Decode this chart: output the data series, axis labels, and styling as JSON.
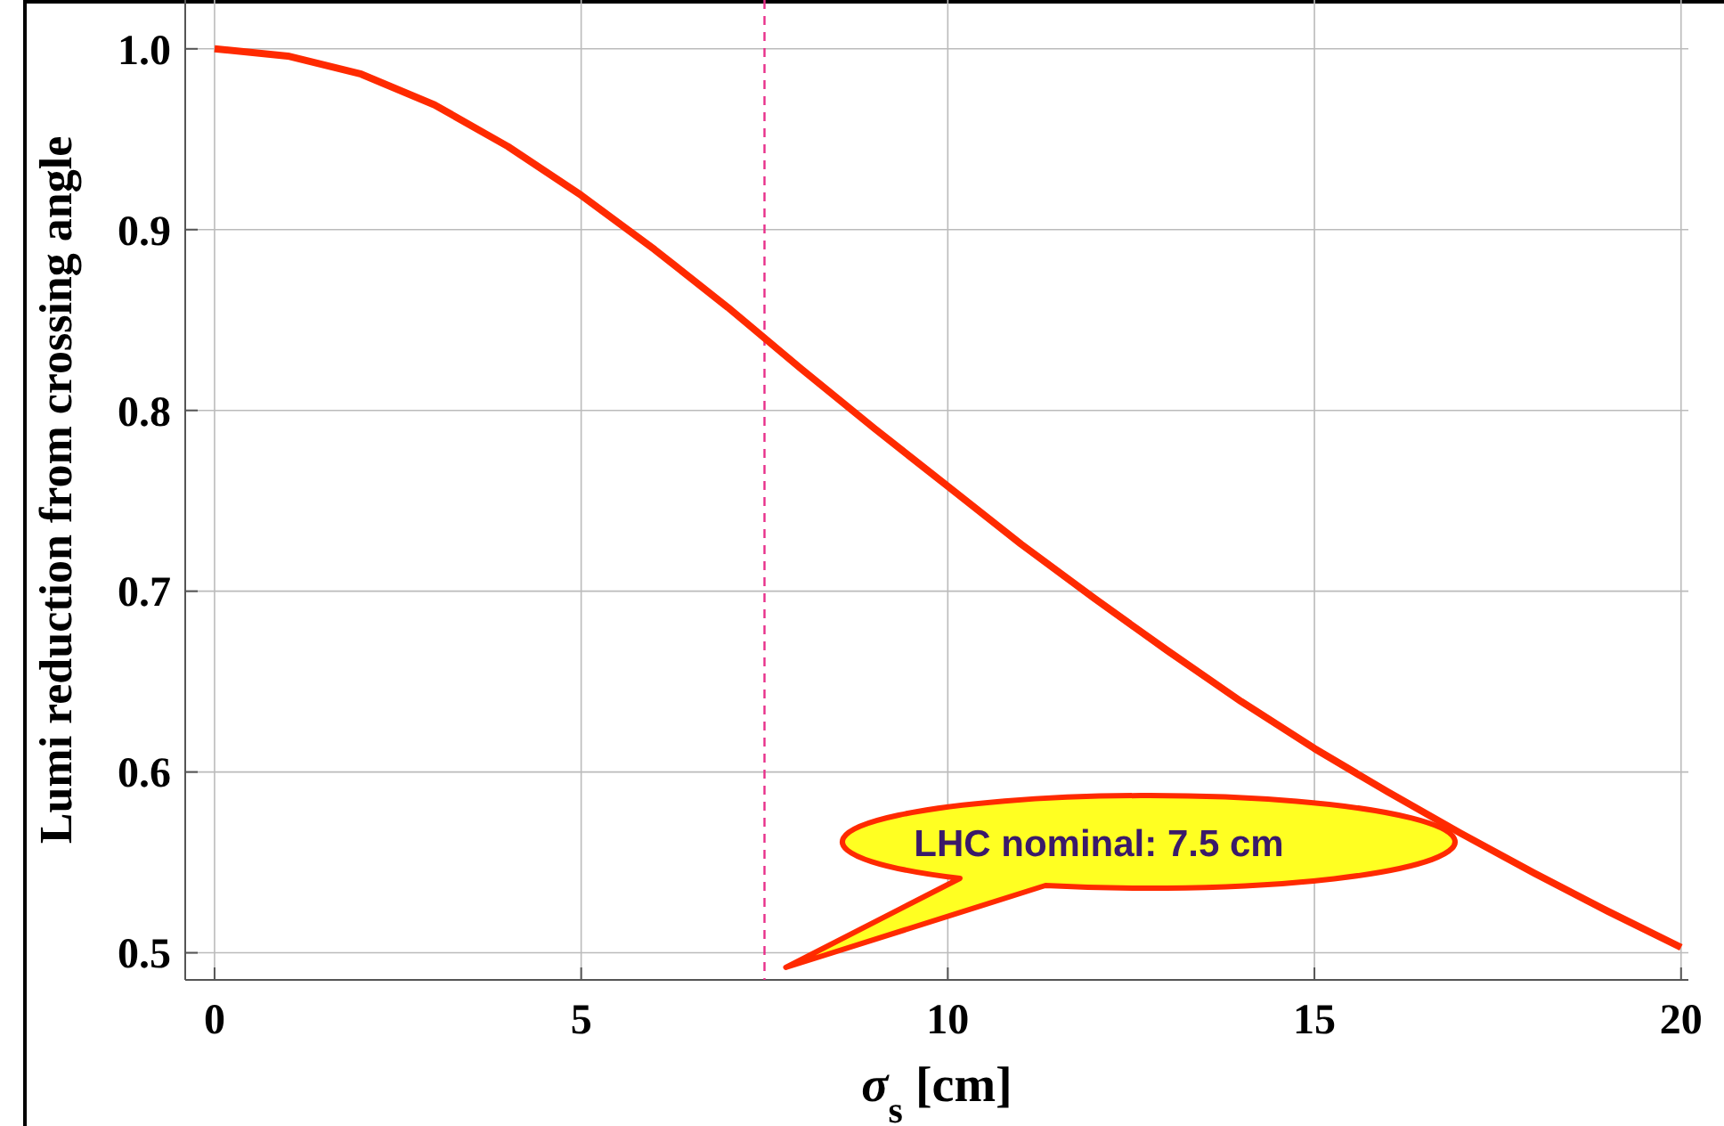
{
  "chart_data": {
    "type": "line",
    "xlabel": "σ$_{s}$ [cm]",
    "ylabel": "Lumi reduction from crossing angle",
    "xlim": [
      -0.4,
      20.1
    ],
    "ylim": [
      0.485,
      1.027
    ],
    "xticks": [
      0,
      5,
      10,
      15,
      20
    ],
    "yticks": [
      {
        "value": 0.5,
        "label": "0.5"
      },
      {
        "value": 0.6,
        "label": "0.6"
      },
      {
        "value": 0.7,
        "label": "0.7"
      },
      {
        "value": 0.8,
        "label": "0.8"
      },
      {
        "value": 0.9,
        "label": "0.9"
      },
      {
        "value": 1.0,
        "label": "1.0"
      }
    ],
    "x": [
      0,
      1,
      2,
      3,
      4,
      5,
      6,
      7,
      7.5,
      8,
      9,
      10,
      11,
      12,
      13,
      14,
      15,
      16,
      17,
      18,
      19,
      20
    ],
    "series": [
      {
        "color": "#ff2a00",
        "values": [
          1.0,
          0.996,
          0.986,
          0.969,
          0.946,
          0.919,
          0.889,
          0.857,
          0.84,
          0.823,
          0.79,
          0.758,
          0.726,
          0.696,
          0.667,
          0.639,
          0.613,
          0.589,
          0.566,
          0.544,
          0.523,
          0.503
        ]
      }
    ],
    "ref_lines": [
      {
        "axis": "x",
        "value": 7.5,
        "color": "#e8308a",
        "line_style": "dashed"
      }
    ],
    "annotations": [
      "LHC nominal: 7.5 cm"
    ],
    "grid": true,
    "marker": "none",
    "line_style": "solid"
  }
}
